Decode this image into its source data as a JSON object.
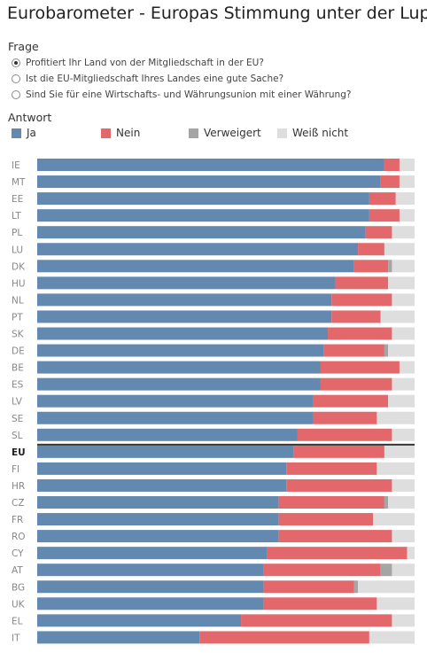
{
  "header": {
    "title": "Eurobarometer - Europas Stimmung unter der Lupe"
  },
  "question_filter": {
    "label": "Frage",
    "options": [
      {
        "label": "Profitiert Ihr Land von der Mitgliedschaft in der EU?",
        "selected": true
      },
      {
        "label": "Ist die EU-Mitgliedschaft Ihres Landes eine gute Sache?",
        "selected": false
      },
      {
        "label": "Sind Sie für eine Wirtschafts- und Währungsunion mit einer Währung?",
        "selected": false
      }
    ]
  },
  "legend": {
    "label": "Antwort",
    "items": [
      {
        "label": "Ja",
        "color": "#6389b1"
      },
      {
        "label": "Nein",
        "color": "#e3686c"
      },
      {
        "label": "Verweigert",
        "color": "#a5a5a5"
      },
      {
        "label": "Weiß nicht",
        "color": "#dedede"
      }
    ]
  },
  "chart_data": {
    "type": "bar",
    "orientation": "horizontal",
    "stacked": true,
    "highlight_category": "EU",
    "categories": [
      "IE",
      "MT",
      "EE",
      "LT",
      "PL",
      "LU",
      "DK",
      "HU",
      "NL",
      "PT",
      "SK",
      "DE",
      "BE",
      "ES",
      "LV",
      "SE",
      "SL",
      "EU",
      "FI",
      "HR",
      "CZ",
      "FR",
      "RO",
      "CY",
      "AT",
      "BG",
      "UK",
      "EL",
      "IT"
    ],
    "series": [
      {
        "name": "Ja",
        "color": "#6389b1",
        "values": [
          92,
          91,
          88,
          88,
          87,
          85,
          84,
          79,
          78,
          78,
          77,
          76,
          75,
          75,
          73,
          73,
          69,
          68,
          66,
          66,
          64,
          64,
          64,
          61,
          60,
          60,
          60,
          54,
          43
        ]
      },
      {
        "name": "Nein",
        "color": "#e3686c",
        "values": [
          4,
          5,
          7,
          8,
          7,
          7,
          9,
          14,
          16,
          13,
          17,
          16,
          21,
          19,
          20,
          17,
          25,
          24,
          24,
          28,
          28,
          25,
          30,
          37,
          31,
          24,
          30,
          40,
          45
        ]
      },
      {
        "name": "Verweigert",
        "color": "#a5a5a5",
        "values": [
          0,
          0,
          0,
          0,
          0,
          0,
          1,
          0,
          0,
          0,
          0,
          1,
          0,
          0,
          0,
          0,
          0,
          0,
          0,
          0,
          1,
          0,
          0,
          0,
          3,
          1,
          0,
          0,
          0
        ]
      },
      {
        "name": "Weiß nicht",
        "color": "#dedede",
        "values": [
          4,
          4,
          5,
          4,
          6,
          8,
          6,
          7,
          6,
          9,
          6,
          7,
          4,
          6,
          7,
          10,
          6,
          8,
          10,
          6,
          7,
          11,
          6,
          2,
          6,
          15,
          10,
          6,
          12
        ]
      }
    ]
  }
}
